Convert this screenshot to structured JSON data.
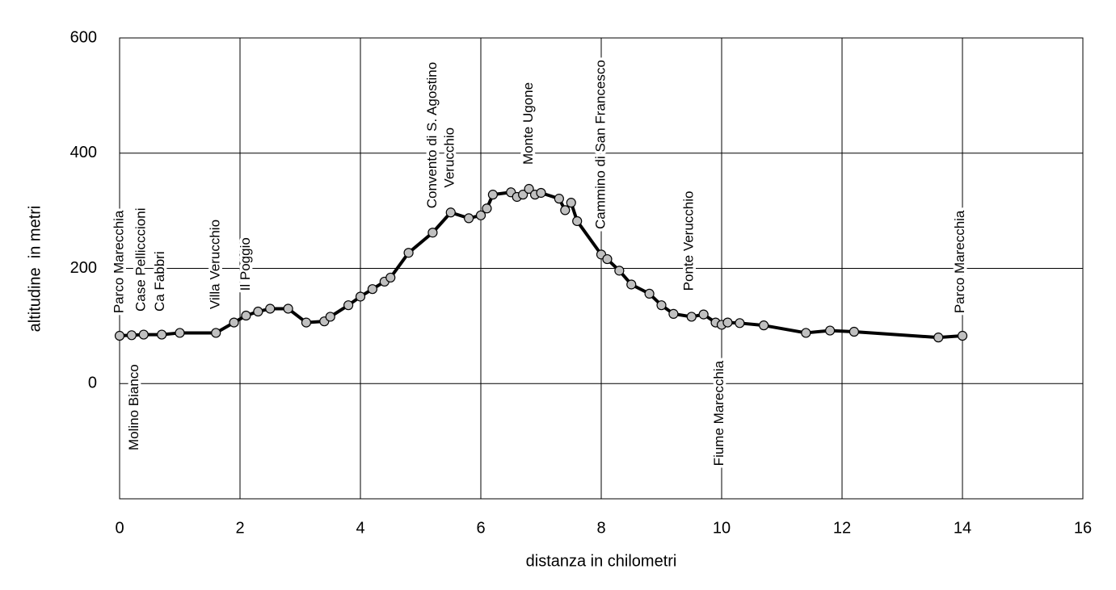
{
  "chart_data": {
    "type": "line",
    "xlabel": "distanza in chilometri",
    "ylabel": "altitudine  in metri",
    "x": [
      0,
      0.2,
      0.4,
      0.7,
      1.0,
      1.6,
      1.9,
      2.1,
      2.3,
      2.5,
      2.8,
      3.1,
      3.4,
      3.5,
      3.8,
      4.0,
      4.2,
      4.4,
      4.5,
      4.8,
      5.2,
      5.5,
      5.8,
      6.0,
      6.1,
      6.2,
      6.5,
      6.6,
      6.7,
      6.8,
      6.9,
      7.0,
      7.3,
      7.4,
      7.5,
      7.6,
      8.0,
      8.1,
      8.3,
      8.5,
      8.8,
      9.0,
      9.2,
      9.5,
      9.7,
      9.9,
      10.0,
      10.1,
      10.3,
      10.7,
      11.4,
      11.8,
      12.2,
      13.6,
      14.0
    ],
    "values": [
      83,
      84,
      85,
      85,
      88,
      88,
      106,
      118,
      125,
      130,
      130,
      106,
      108,
      116,
      136,
      151,
      164,
      177,
      184,
      227,
      262,
      297,
      287,
      292,
      304,
      328,
      332,
      324,
      328,
      338,
      328,
      331,
      321,
      301,
      314,
      282,
      224,
      216,
      196,
      172,
      156,
      136,
      121,
      116,
      120,
      106,
      102,
      106,
      105,
      101,
      88,
      92,
      90,
      80,
      83
    ],
    "color": "#000000",
    "marker_color": "#c0c0c0",
    "xlim": [
      0,
      16
    ],
    "xticks": [
      0,
      2,
      4,
      6,
      8,
      10,
      12,
      14,
      16
    ],
    "ylim": [
      -200,
      600
    ],
    "yticks": [
      0,
      200,
      400,
      600
    ],
    "grid": true,
    "annotations": [
      {
        "text": "Parco Marecchia",
        "x": 0,
        "y": 122
      },
      {
        "text": "Molino Bianco",
        "x": 0.25,
        "y": -116
      },
      {
        "text": "Case Pellicccioni",
        "x": 0.36,
        "y": 125
      },
      {
        "text": "Ca Fabbri",
        "x": 0.68,
        "y": 125
      },
      {
        "text": "Villa Verucchio",
        "x": 1.6,
        "y": 129
      },
      {
        "text": "Il Poggio",
        "x": 2.1,
        "y": 161
      },
      {
        "text": "Convento di S. Agostino",
        "x": 5.2,
        "y": 304
      },
      {
        "text": "Verucchio",
        "x": 5.49,
        "y": 340
      },
      {
        "text": "Monte Ugone",
        "x": 6.8,
        "y": 380
      },
      {
        "text": "Cammino di San Francesco",
        "x": 8.0,
        "y": 268
      },
      {
        "text": "Ponte Verucchio",
        "x": 9.46,
        "y": 161
      },
      {
        "text": "Fiume Marecchia",
        "x": 9.97,
        "y": -143
      },
      {
        "text": "Parco Marecchia",
        "x": 13.97,
        "y": 122
      }
    ]
  }
}
